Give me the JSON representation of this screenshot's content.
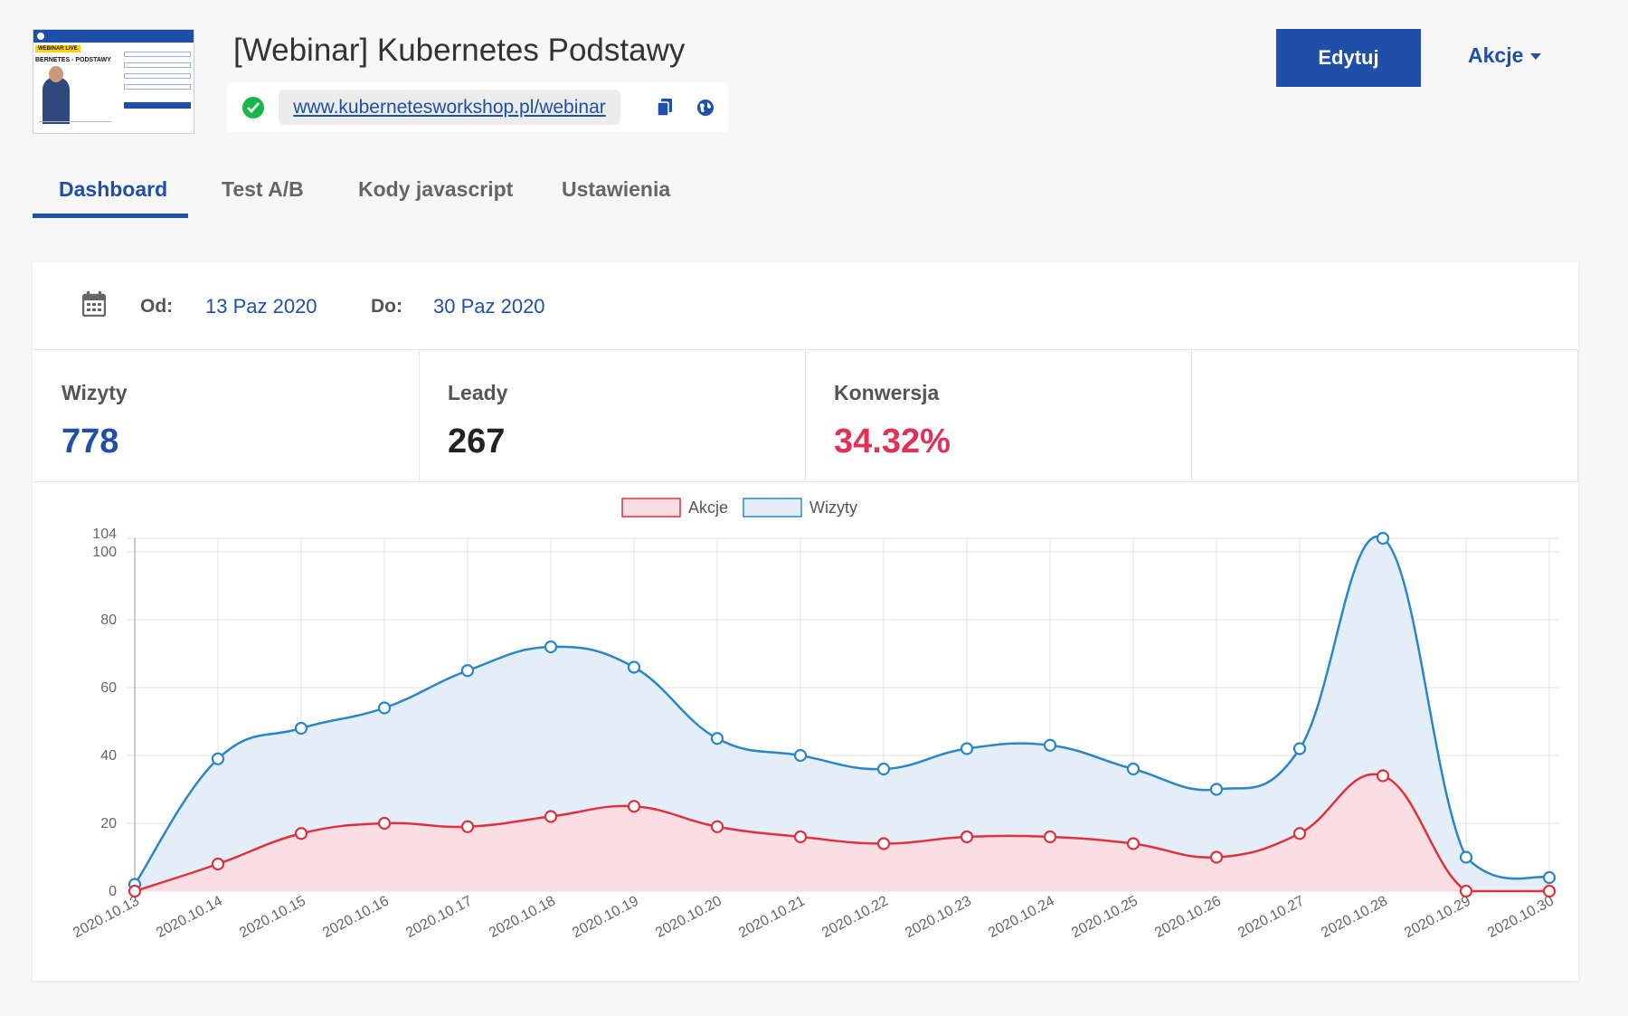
{
  "header": {
    "title": "[Webinar] Kubernetes Podstawy",
    "url": "www.kubernetesworkshop.pl/webinar",
    "thumbnail": {
      "banner": "WEBINAR LIVE",
      "title": "BERNETES - PODSTAWY"
    },
    "edit_label": "Edytuj",
    "actions_label": "Akcje"
  },
  "tabs": [
    {
      "label": "Dashboard",
      "active": true
    },
    {
      "label": "Test A/B",
      "active": false
    },
    {
      "label": "Kody javascript",
      "active": false
    },
    {
      "label": "Ustawienia",
      "active": false
    }
  ],
  "date_range": {
    "from_label": "Od:",
    "from_value": "13 Paz 2020",
    "to_label": "Do:",
    "to_value": "30 Paz 2020"
  },
  "stats": [
    {
      "title": "Wizyty",
      "value": "778",
      "color": "#1f4fa8"
    },
    {
      "title": "Leady",
      "value": "267",
      "color": "#222222"
    },
    {
      "title": "Konwersja",
      "value": "34.32%",
      "color": "#e0315a"
    }
  ],
  "colors": {
    "accent": "#1f4fa8",
    "akcje_line": "#e0313d",
    "akcje_fill": "#fbdde4",
    "wizyty_line": "#2a86c6",
    "wizyty_fill": "#e3eef9"
  },
  "chart_data": {
    "type": "area",
    "x": [
      "2020.10.13",
      "2020.10.14",
      "2020.10.15",
      "2020.10.16",
      "2020.10.17",
      "2020.10.18",
      "2020.10.19",
      "2020.10.20",
      "2020.10.21",
      "2020.10.22",
      "2020.10.23",
      "2020.10.24",
      "2020.10.25",
      "2020.10.26",
      "2020.10.27",
      "2020.10.28",
      "2020.10.29",
      "2020.10.30"
    ],
    "series": [
      {
        "name": "Akcje",
        "values": [
          0,
          8,
          17,
          20,
          19,
          22,
          25,
          19,
          16,
          14,
          16,
          16,
          14,
          10,
          17,
          34,
          0,
          0
        ]
      },
      {
        "name": "Wizyty",
        "values": [
          2,
          39,
          48,
          54,
          65,
          72,
          66,
          45,
          40,
          36,
          42,
          43,
          36,
          30,
          42,
          104,
          10,
          4
        ]
      }
    ],
    "yticks": [
      "0",
      "20",
      "40",
      "60",
      "80",
      "100",
      "104"
    ],
    "ylim": [
      0,
      104
    ],
    "legend": "top",
    "grid": true
  }
}
